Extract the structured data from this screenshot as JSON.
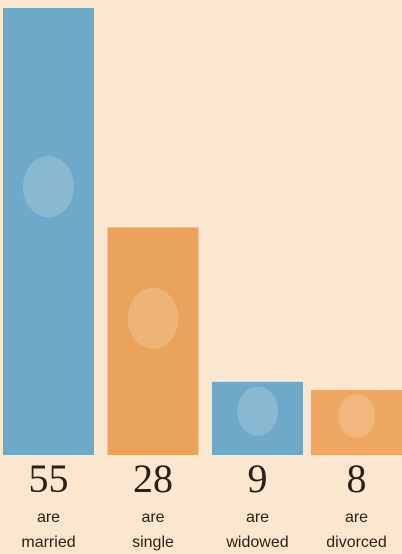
{
  "chart_data": {
    "type": "bar",
    "values": [
      55,
      28,
      9,
      8
    ],
    "verbs": [
      "are",
      "are",
      "are",
      "are"
    ],
    "categories": [
      "married",
      "single",
      "widowed",
      "divorced"
    ],
    "colors": [
      "#6fa9c9",
      "#e9a35a",
      "#6fa9c9",
      "#eea862"
    ]
  }
}
